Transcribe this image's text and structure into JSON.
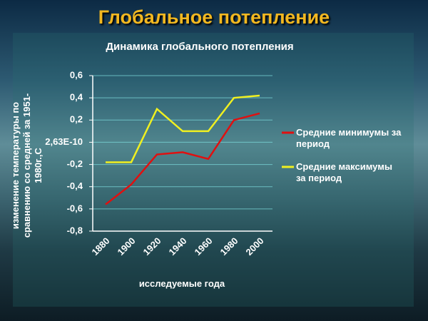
{
  "slide_title": "Глобальное потепление",
  "chart_data": {
    "type": "line",
    "title": "Динамика глобального потепления",
    "x_label": "исследуемые года",
    "y_label": "изменение температуры по сравнению со средней за 1951-1980г.,С",
    "categories": [
      "1880",
      "1900",
      "1920",
      "1940",
      "1960",
      "1980",
      "2000"
    ],
    "series": [
      {
        "name": "Средние минимумы за период",
        "color": "#e01010",
        "values": [
          -0.56,
          -0.38,
          -0.11,
          -0.09,
          -0.15,
          0.2,
          0.26
        ]
      },
      {
        "name": "Средние максимумы за период",
        "color": "#f0f020",
        "values": [
          -0.18,
          -0.18,
          0.3,
          0.1,
          0.1,
          0.4,
          0.42
        ]
      }
    ],
    "ylim": [
      -0.8,
      0.6
    ],
    "yticks": [
      {
        "value": -0.8,
        "label": "-0,8"
      },
      {
        "value": -0.6,
        "label": "-0,6"
      },
      {
        "value": -0.4,
        "label": "-0,4"
      },
      {
        "value": -0.2,
        "label": "-0,2"
      },
      {
        "value": 2.63e-10,
        "label": "2,63E-10"
      },
      {
        "value": 0.2,
        "label": "0,2"
      },
      {
        "value": 0.4,
        "label": "0,4"
      },
      {
        "value": 0.6,
        "label": "0,6"
      }
    ],
    "grid": true,
    "legend": "right"
  }
}
